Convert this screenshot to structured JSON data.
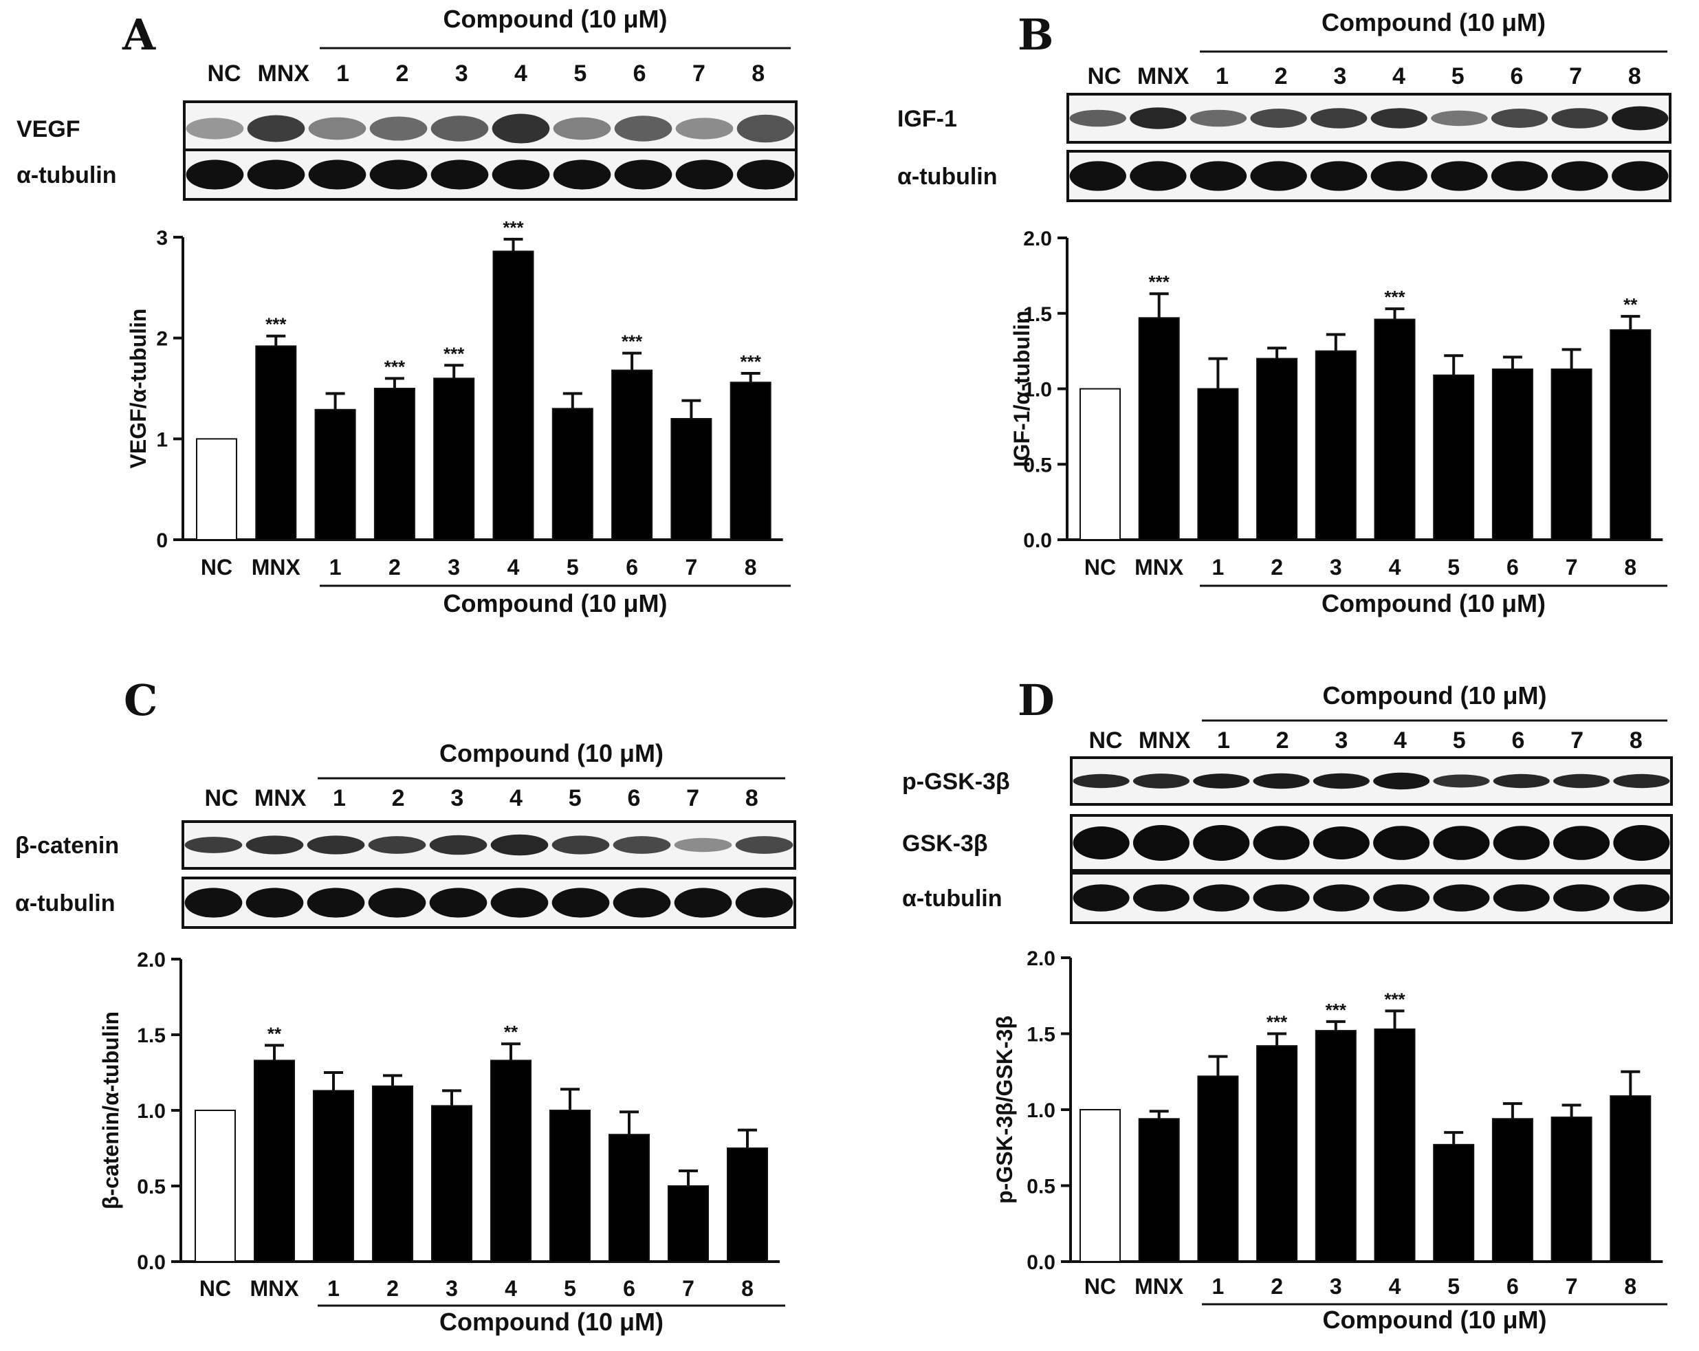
{
  "chart_data": [
    {
      "panel": "A",
      "type": "bar",
      "header": "Compound (10 μM)",
      "lanes": [
        "NC",
        "MNX",
        "1",
        "2",
        "3",
        "4",
        "5",
        "6",
        "7",
        "8"
      ],
      "blots": [
        {
          "label": "VEGF",
          "intensity": [
            0.35,
            0.75,
            0.45,
            0.55,
            0.6,
            0.8,
            0.45,
            0.6,
            0.4,
            0.65
          ],
          "thickness": [
            0.4,
            0.5,
            0.42,
            0.45,
            0.48,
            0.55,
            0.42,
            0.48,
            0.4,
            0.52
          ]
        },
        {
          "label": "α-tubulin",
          "intensity": [
            0.95,
            0.95,
            0.95,
            0.95,
            0.95,
            0.95,
            0.95,
            0.95,
            0.95,
            0.95
          ],
          "thickness": [
            0.6,
            0.6,
            0.6,
            0.6,
            0.6,
            0.6,
            0.6,
            0.6,
            0.6,
            0.6
          ]
        }
      ],
      "categories": [
        "NC",
        "MNX",
        "1",
        "2",
        "3",
        "4",
        "5",
        "6",
        "7",
        "8"
      ],
      "values": [
        1.0,
        1.92,
        1.29,
        1.5,
        1.6,
        2.86,
        1.3,
        1.68,
        1.2,
        1.56
      ],
      "errors": [
        0,
        0.1,
        0.16,
        0.1,
        0.13,
        0.12,
        0.15,
        0.17,
        0.18,
        0.09
      ],
      "significance": [
        "",
        "***",
        "",
        "***",
        "***",
        "***",
        "",
        "***",
        "",
        "***"
      ],
      "ylabel": "VEGF/α-tubulin",
      "ylim": [
        0,
        3
      ],
      "yticks": [
        "0",
        "1",
        "2",
        "3"
      ],
      "xgroup_label": "Compound (10 μM)"
    },
    {
      "panel": "B",
      "type": "bar",
      "header": "Compound (10 μM)",
      "lanes": [
        "NC",
        "MNX",
        "1",
        "2",
        "3",
        "4",
        "5",
        "6",
        "7",
        "8"
      ],
      "blots": [
        {
          "label": "IGF-1",
          "intensity": [
            0.6,
            0.85,
            0.55,
            0.7,
            0.75,
            0.8,
            0.5,
            0.7,
            0.75,
            0.9
          ],
          "thickness": [
            0.35,
            0.45,
            0.35,
            0.4,
            0.42,
            0.42,
            0.32,
            0.4,
            0.42,
            0.5
          ]
        },
        {
          "label": "α-tubulin",
          "intensity": [
            0.95,
            0.95,
            0.95,
            0.95,
            0.95,
            0.95,
            0.95,
            0.95,
            0.95,
            0.95
          ],
          "thickness": [
            0.6,
            0.6,
            0.6,
            0.6,
            0.6,
            0.6,
            0.6,
            0.6,
            0.6,
            0.6
          ]
        }
      ],
      "categories": [
        "NC",
        "MNX",
        "1",
        "2",
        "3",
        "4",
        "5",
        "6",
        "7",
        "8"
      ],
      "values": [
        1.0,
        1.47,
        1.0,
        1.2,
        1.25,
        1.46,
        1.09,
        1.13,
        1.13,
        1.39
      ],
      "errors": [
        0,
        0.16,
        0.2,
        0.07,
        0.11,
        0.07,
        0.13,
        0.08,
        0.13,
        0.09
      ],
      "significance": [
        "",
        "***",
        "",
        "",
        "",
        "***",
        "",
        "",
        "",
        "**"
      ],
      "ylabel": "IGF-1/α-tubulin",
      "ylim": [
        0,
        2
      ],
      "yticks": [
        "0.0",
        "0.5",
        "1.0",
        "1.5",
        "2.0"
      ],
      "xgroup_label": "Compound (10 μM)"
    },
    {
      "panel": "C",
      "type": "bar",
      "header": "Compound (10 μM)",
      "lanes": [
        "NC",
        "MNX",
        "1",
        "2",
        "3",
        "4",
        "5",
        "6",
        "7",
        "8"
      ],
      "blots": [
        {
          "label": "β-catenin",
          "intensity": [
            0.75,
            0.8,
            0.8,
            0.75,
            0.8,
            0.85,
            0.75,
            0.7,
            0.4,
            0.7
          ],
          "thickness": [
            0.35,
            0.4,
            0.4,
            0.38,
            0.42,
            0.45,
            0.4,
            0.38,
            0.3,
            0.38
          ]
        },
        {
          "label": "α-tubulin",
          "intensity": [
            0.95,
            0.95,
            0.95,
            0.95,
            0.95,
            0.95,
            0.95,
            0.95,
            0.95,
            0.95
          ],
          "thickness": [
            0.6,
            0.6,
            0.6,
            0.6,
            0.6,
            0.6,
            0.6,
            0.6,
            0.6,
            0.6
          ]
        }
      ],
      "categories": [
        "NC",
        "MNX",
        "1",
        "2",
        "3",
        "4",
        "5",
        "6",
        "7",
        "8"
      ],
      "values": [
        1.0,
        1.33,
        1.13,
        1.16,
        1.03,
        1.33,
        1.0,
        0.84,
        0.5,
        0.75
      ],
      "errors": [
        0,
        0.1,
        0.12,
        0.07,
        0.1,
        0.11,
        0.14,
        0.15,
        0.1,
        0.12
      ],
      "significance": [
        "",
        "**",
        "",
        "",
        "",
        "**",
        "",
        "",
        "",
        ""
      ],
      "ylabel": "β-catenin/α-tubulin",
      "ylim": [
        0,
        2
      ],
      "yticks": [
        "0.0",
        "0.5",
        "1.0",
        "1.5",
        "2.0"
      ],
      "xgroup_label": "Compound (10 μM)"
    },
    {
      "panel": "D",
      "type": "bar",
      "header": "Compound (10 μM)",
      "lanes": [
        "NC",
        "MNX",
        "1",
        "2",
        "3",
        "4",
        "5",
        "6",
        "7",
        "8"
      ],
      "blots": [
        {
          "label": "p-GSK-3β",
          "intensity": [
            0.85,
            0.85,
            0.9,
            0.9,
            0.9,
            0.92,
            0.8,
            0.85,
            0.85,
            0.85
          ],
          "thickness": [
            0.3,
            0.32,
            0.32,
            0.33,
            0.33,
            0.36,
            0.28,
            0.3,
            0.3,
            0.3
          ]
        },
        {
          "label": "GSK-3β",
          "intensity": [
            0.97,
            0.97,
            0.97,
            0.97,
            0.97,
            0.97,
            0.97,
            0.97,
            0.97,
            0.97
          ],
          "thickness": [
            0.6,
            0.65,
            0.65,
            0.62,
            0.6,
            0.62,
            0.62,
            0.62,
            0.62,
            0.65
          ]
        },
        {
          "label": "α-tubulin",
          "intensity": [
            0.95,
            0.95,
            0.95,
            0.95,
            0.95,
            0.95,
            0.95,
            0.95,
            0.95,
            0.95
          ],
          "thickness": [
            0.55,
            0.55,
            0.55,
            0.55,
            0.55,
            0.55,
            0.55,
            0.55,
            0.55,
            0.55
          ]
        }
      ],
      "categories": [
        "NC",
        "MNX",
        "1",
        "2",
        "3",
        "4",
        "5",
        "6",
        "7",
        "8"
      ],
      "values": [
        1.0,
        0.94,
        1.22,
        1.42,
        1.52,
        1.53,
        0.77,
        0.94,
        0.95,
        1.09
      ],
      "errors": [
        0,
        0.05,
        0.13,
        0.08,
        0.06,
        0.12,
        0.08,
        0.1,
        0.08,
        0.16
      ],
      "significance": [
        "",
        "",
        "",
        "***",
        "***",
        "***",
        "",
        "",
        "",
        ""
      ],
      "ylabel": "p-GSK-3β/GSK-3β",
      "ylim": [
        0,
        2
      ],
      "yticks": [
        "0.0",
        "0.5",
        "1.0",
        "1.5",
        "2.0"
      ],
      "xgroup_label": "Compound (10 μM)"
    }
  ]
}
